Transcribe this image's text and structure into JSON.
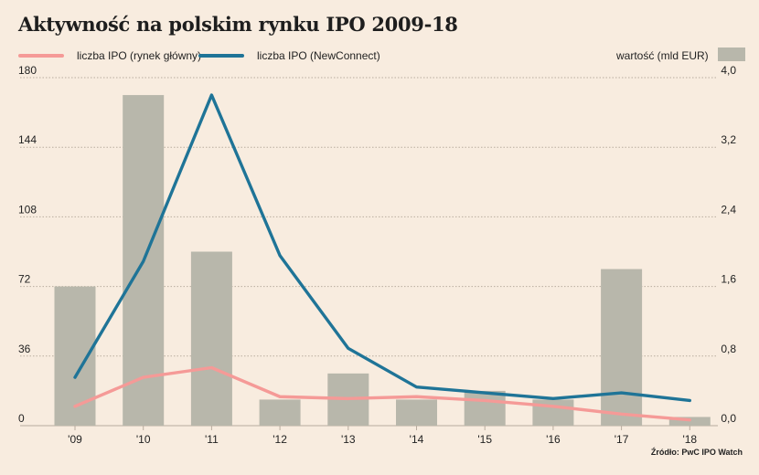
{
  "title": "Aktywność na polskim rynku IPO 2009-18",
  "legend": {
    "main_market_label": "liczba IPO (rynek główny)",
    "newconnect_label": "liczba IPO (NewConnect)",
    "value_label": "wartość (mld EUR)"
  },
  "source": "Źródło: PwC IPO Watch",
  "colors": {
    "main_market": "#f59a97",
    "newconnect": "#1f7497",
    "bars": "#b8b7ab",
    "grid": "#b9ad9f",
    "background": "#f8ecdf"
  },
  "chart_data": {
    "type": "bar",
    "categories": [
      "'09",
      "'10",
      "'11",
      "'12",
      "'13",
      "'14",
      "'15",
      "'16",
      "'17",
      "'18"
    ],
    "series": [
      {
        "name": "wartość (mld EUR)",
        "type": "bar",
        "axis": "right",
        "values": [
          1.6,
          3.8,
          2.0,
          0.3,
          0.6,
          0.3,
          0.4,
          0.3,
          1.8,
          0.1
        ]
      },
      {
        "name": "liczba IPO (rynek główny)",
        "type": "line",
        "axis": "left",
        "values": [
          10,
          25,
          30,
          15,
          14,
          15,
          13,
          10,
          6,
          3
        ]
      },
      {
        "name": "liczba IPO (NewConnect)",
        "type": "line",
        "axis": "left",
        "values": [
          25,
          85,
          171,
          88,
          40,
          20,
          17,
          14,
          17,
          13
        ]
      }
    ],
    "left_axis": {
      "ylim": [
        0,
        180
      ],
      "ticks": [
        "0",
        "36",
        "72",
        "108",
        "144",
        "180"
      ]
    },
    "right_axis": {
      "ylim": [
        0,
        4
      ],
      "ticks": [
        "0,0",
        "0,8",
        "1,6",
        "2,4",
        "3,2",
        "4,0"
      ]
    },
    "grid": true,
    "legend_position": "top"
  }
}
